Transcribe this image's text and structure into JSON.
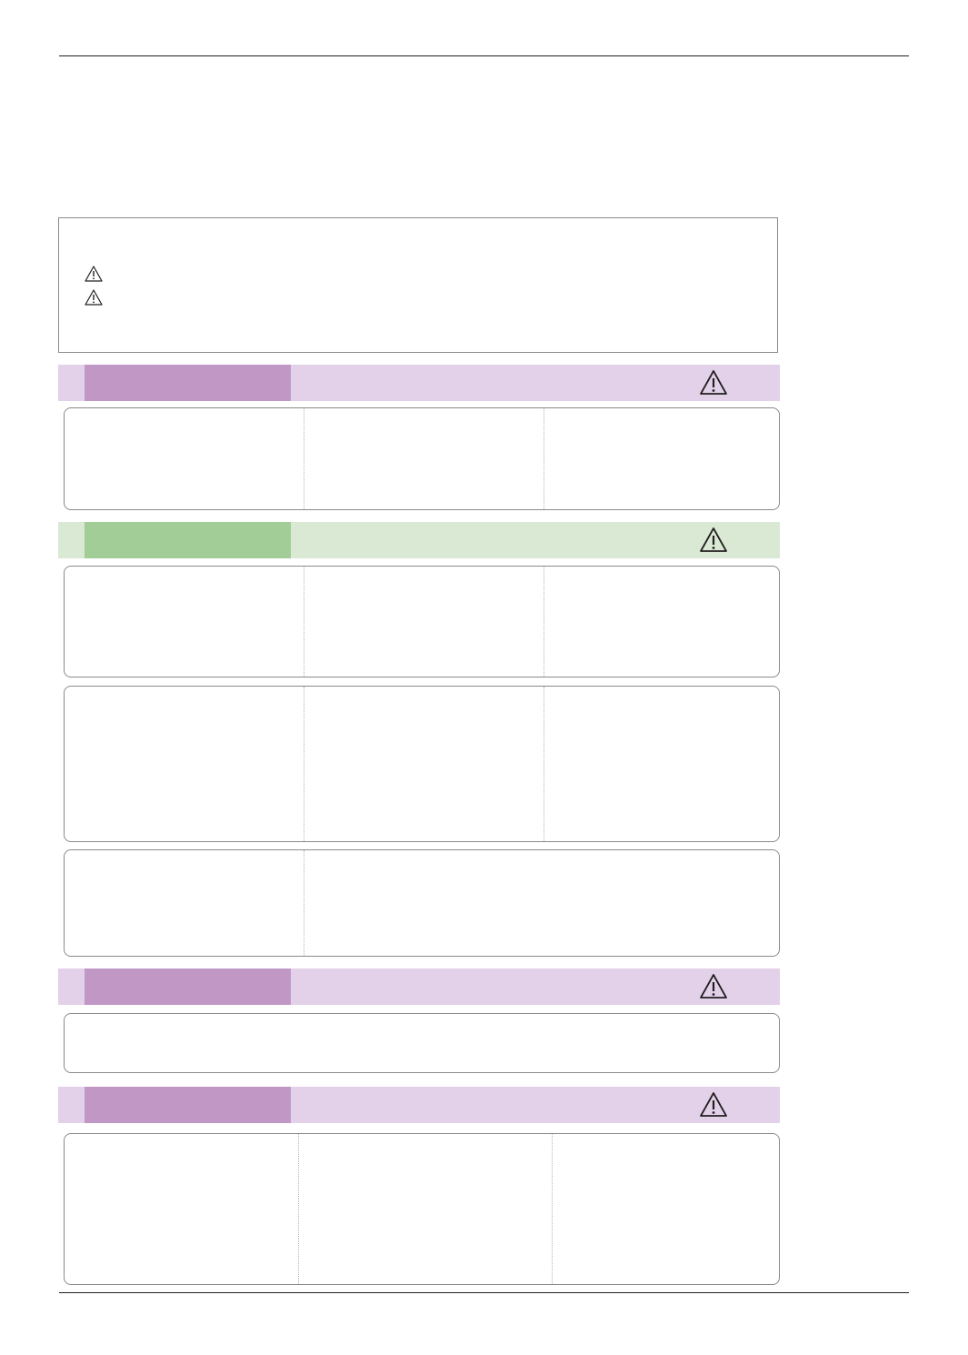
{
  "icons": {
    "notice": [
      "warning-icon",
      "warning-icon"
    ],
    "banner": "warning-icon"
  },
  "colors": {
    "purple_label": "#c197c6",
    "purple_band": "#e3d1e9",
    "green_label": "#a2cd96",
    "green_band": "#d9e9d4"
  }
}
